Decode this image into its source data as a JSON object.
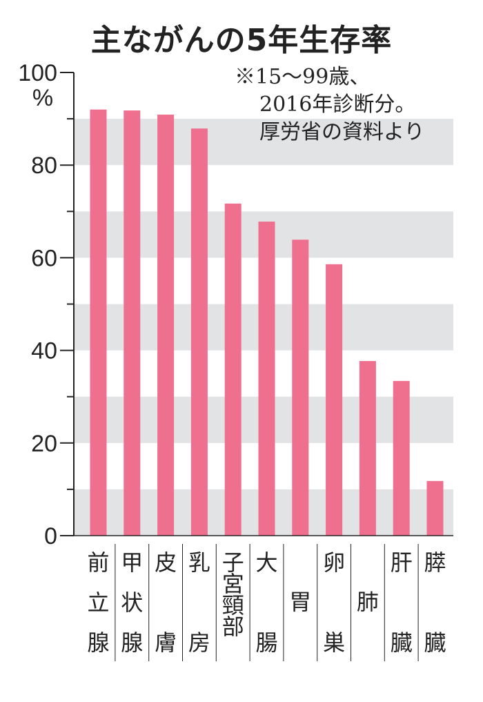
{
  "chart_data": {
    "type": "bar",
    "title": "主ながんの5年生存率",
    "note": [
      "※15～99歳、",
      "2016年診断分。",
      "厚労省の資料より"
    ],
    "ylabel": "%",
    "ylim": [
      0,
      100
    ],
    "yticks": [
      0,
      20,
      40,
      60,
      80,
      100
    ],
    "grid": "alternating bands every 10",
    "categories": [
      "前立腺",
      "甲状腺",
      "皮膚",
      "乳房",
      "子宮頸部",
      "大腸",
      "胃",
      "卵巣",
      "肺",
      "肝臓",
      "膵臓"
    ],
    "values": [
      92.0,
      91.8,
      90.9,
      87.9,
      71.7,
      67.8,
      63.9,
      58.6,
      37.7,
      33.4,
      11.8
    ],
    "bar_color": "#ef6f8f",
    "band_color": "#e2e3e5"
  }
}
